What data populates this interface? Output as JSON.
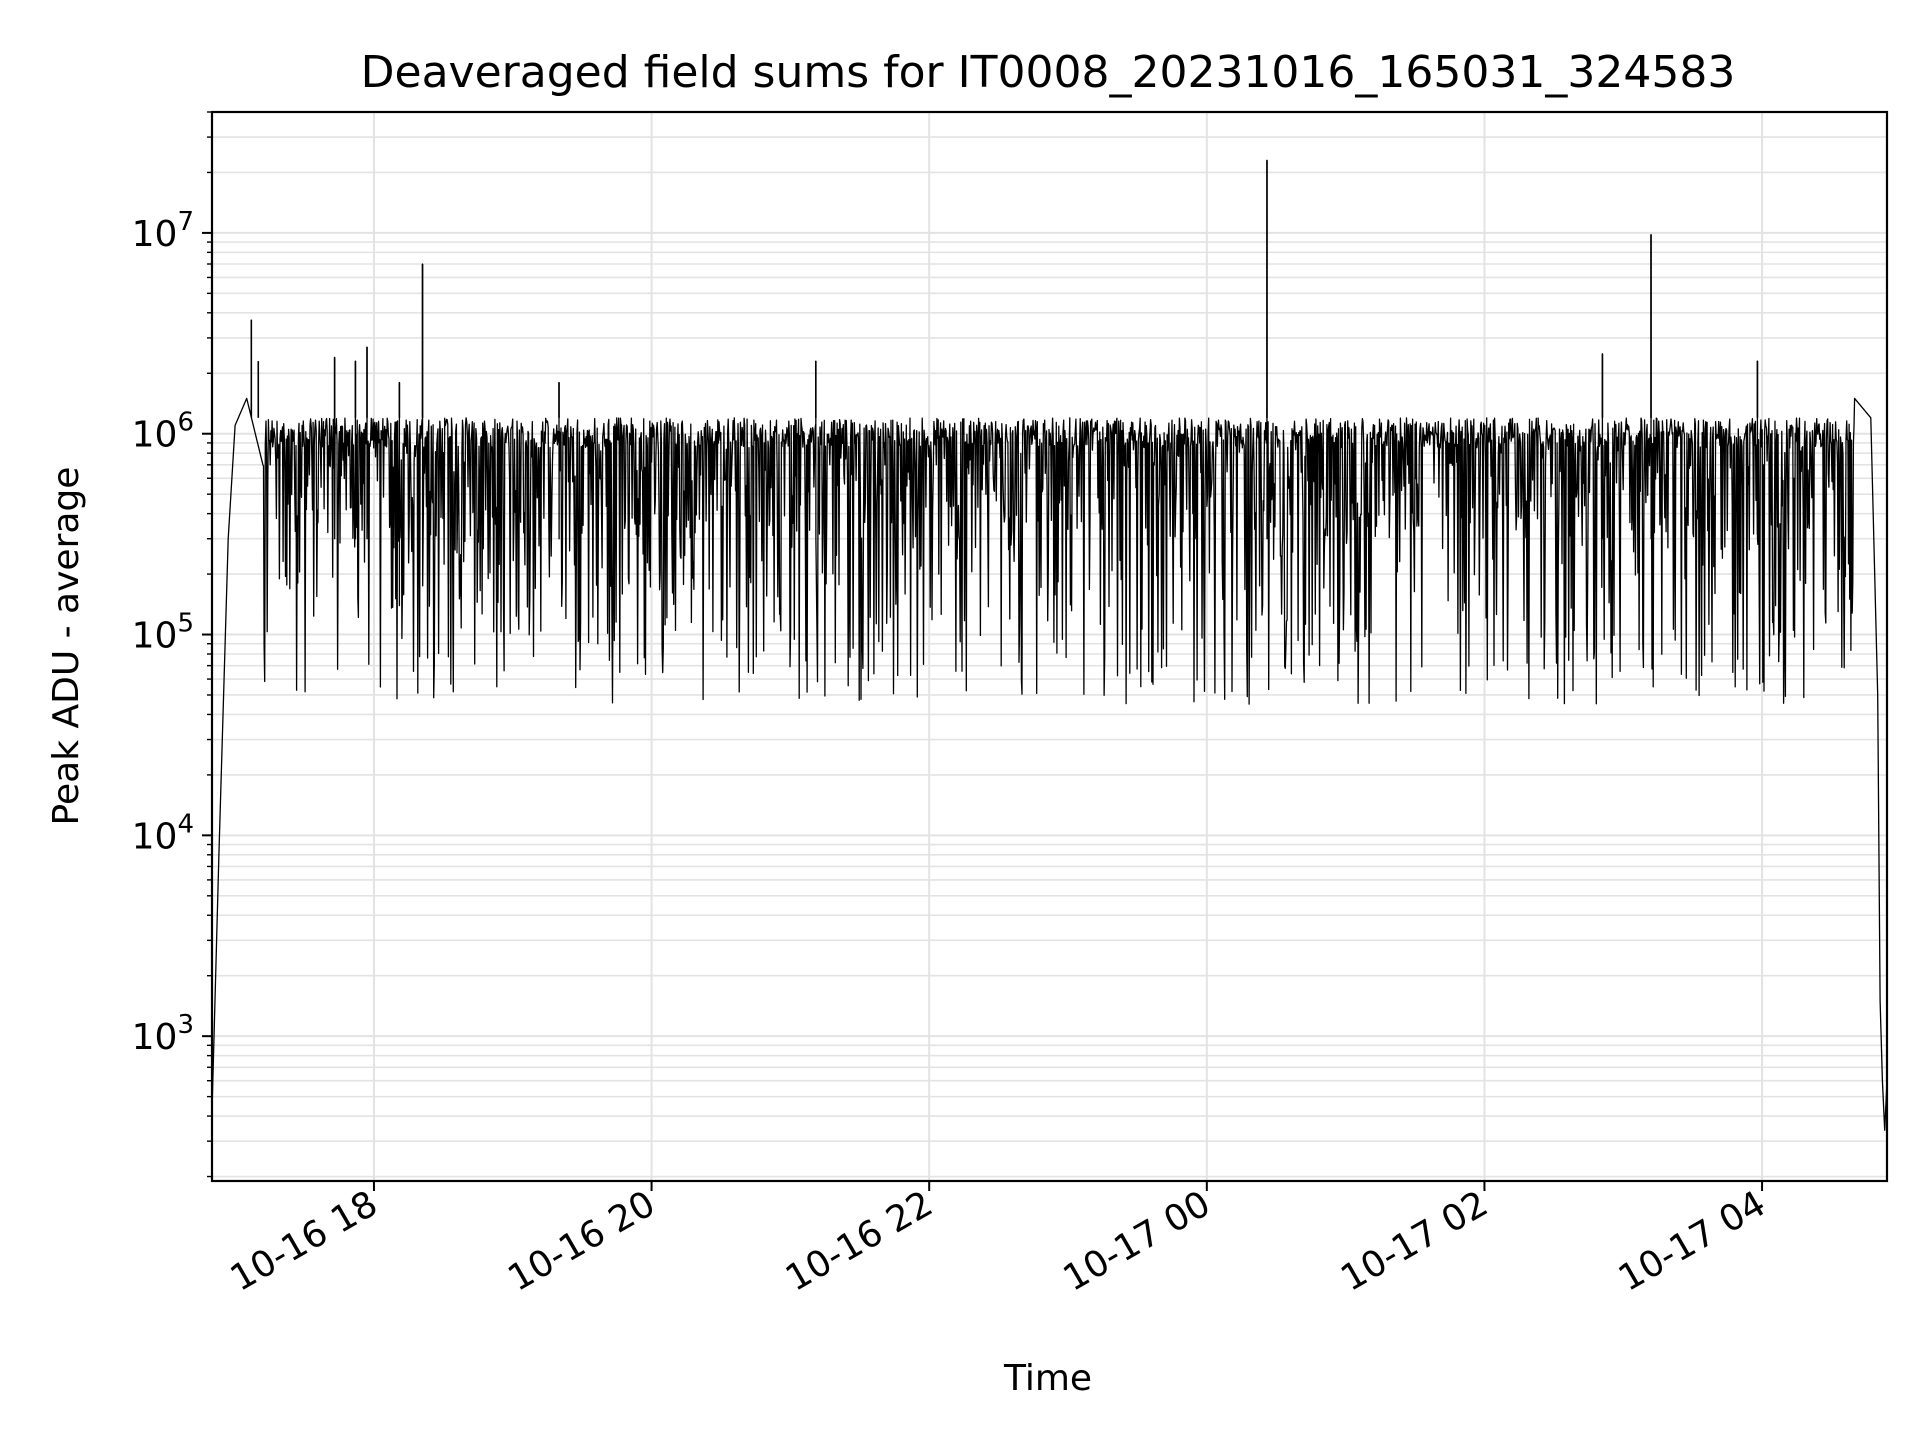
{
  "chart_data": {
    "type": "line",
    "title": "Deaveraged field sums for IT0008_20231016_165031_324583",
    "xlabel": "Time",
    "ylabel": "Peak ADU - average",
    "x_axis": {
      "type": "datetime",
      "range": [
        "2023-10-16 16:50",
        "2023-10-17 04:54"
      ],
      "ticks": [
        "2023-10-16 18:00",
        "2023-10-16 20:00",
        "2023-10-16 22:00",
        "2023-10-17 00:00",
        "2023-10-17 02:00",
        "2023-10-17 04:00"
      ],
      "tick_labels": [
        "10-16 18",
        "10-16 20",
        "10-16 22",
        "10-17 00",
        "10-17 02",
        "10-17 04"
      ]
    },
    "y_axis": {
      "scale": "log",
      "range": [
        190,
        40000000
      ],
      "ticks": [
        1000,
        10000,
        100000,
        1000000,
        10000000
      ],
      "tick_labels": [
        {
          "base": "10",
          "exp": "3"
        },
        {
          "base": "10",
          "exp": "4"
        },
        {
          "base": "10",
          "exp": "5"
        },
        {
          "base": "10",
          "exp": "6"
        },
        {
          "base": "10",
          "exp": "7"
        }
      ]
    },
    "grid": true,
    "line_color": "#000000",
    "grid_color": "#e3e3e3",
    "envelope": [
      {
        "x": "2023-10-16 16:50",
        "y": 420
      },
      {
        "x": "2023-10-16 16:53",
        "y": 8000
      },
      {
        "x": "2023-10-16 16:57",
        "y": 300000
      },
      {
        "x": "2023-10-16 17:00",
        "y": 1100000
      },
      {
        "x": "2023-10-16 17:05",
        "y": 1500000
      },
      {
        "x": "2023-10-16 17:12",
        "y": 700000
      },
      {
        "x": "2023-10-17 04:40",
        "y": 1500000
      },
      {
        "x": "2023-10-17 04:47",
        "y": 1200000
      },
      {
        "x": "2023-10-17 04:50",
        "y": 50000
      },
      {
        "x": "2023-10-17 04:51",
        "y": 1500
      },
      {
        "x": "2023-10-17 04:52",
        "y": 600
      },
      {
        "x": "2023-10-17 04:53",
        "y": 340
      },
      {
        "x": "2023-10-17 04:54",
        "y": 600
      }
    ],
    "noise_band": {
      "x_start": "2023-10-16 17:12",
      "x_end": "2023-10-17 04:40",
      "typical_high": 1200000,
      "typical_low": 300000,
      "min": 45000
    },
    "spikes": [
      {
        "x": "2023-10-16 17:07",
        "y": 3700000
      },
      {
        "x": "2023-10-16 17:10",
        "y": 2300000
      },
      {
        "x": "2023-10-16 17:43",
        "y": 2400000
      },
      {
        "x": "2023-10-16 17:52",
        "y": 2300000
      },
      {
        "x": "2023-10-16 17:57",
        "y": 2700000
      },
      {
        "x": "2023-10-16 18:11",
        "y": 1800000
      },
      {
        "x": "2023-10-16 18:21",
        "y": 7000000
      },
      {
        "x": "2023-10-16 19:20",
        "y": 1800000
      },
      {
        "x": "2023-10-16 21:11",
        "y": 2300000
      },
      {
        "x": "2023-10-17 00:26",
        "y": 23000000
      },
      {
        "x": "2023-10-17 02:51",
        "y": 2500000
      },
      {
        "x": "2023-10-17 03:12",
        "y": 9800000
      },
      {
        "x": "2023-10-17 03:58",
        "y": 2300000
      }
    ]
  }
}
